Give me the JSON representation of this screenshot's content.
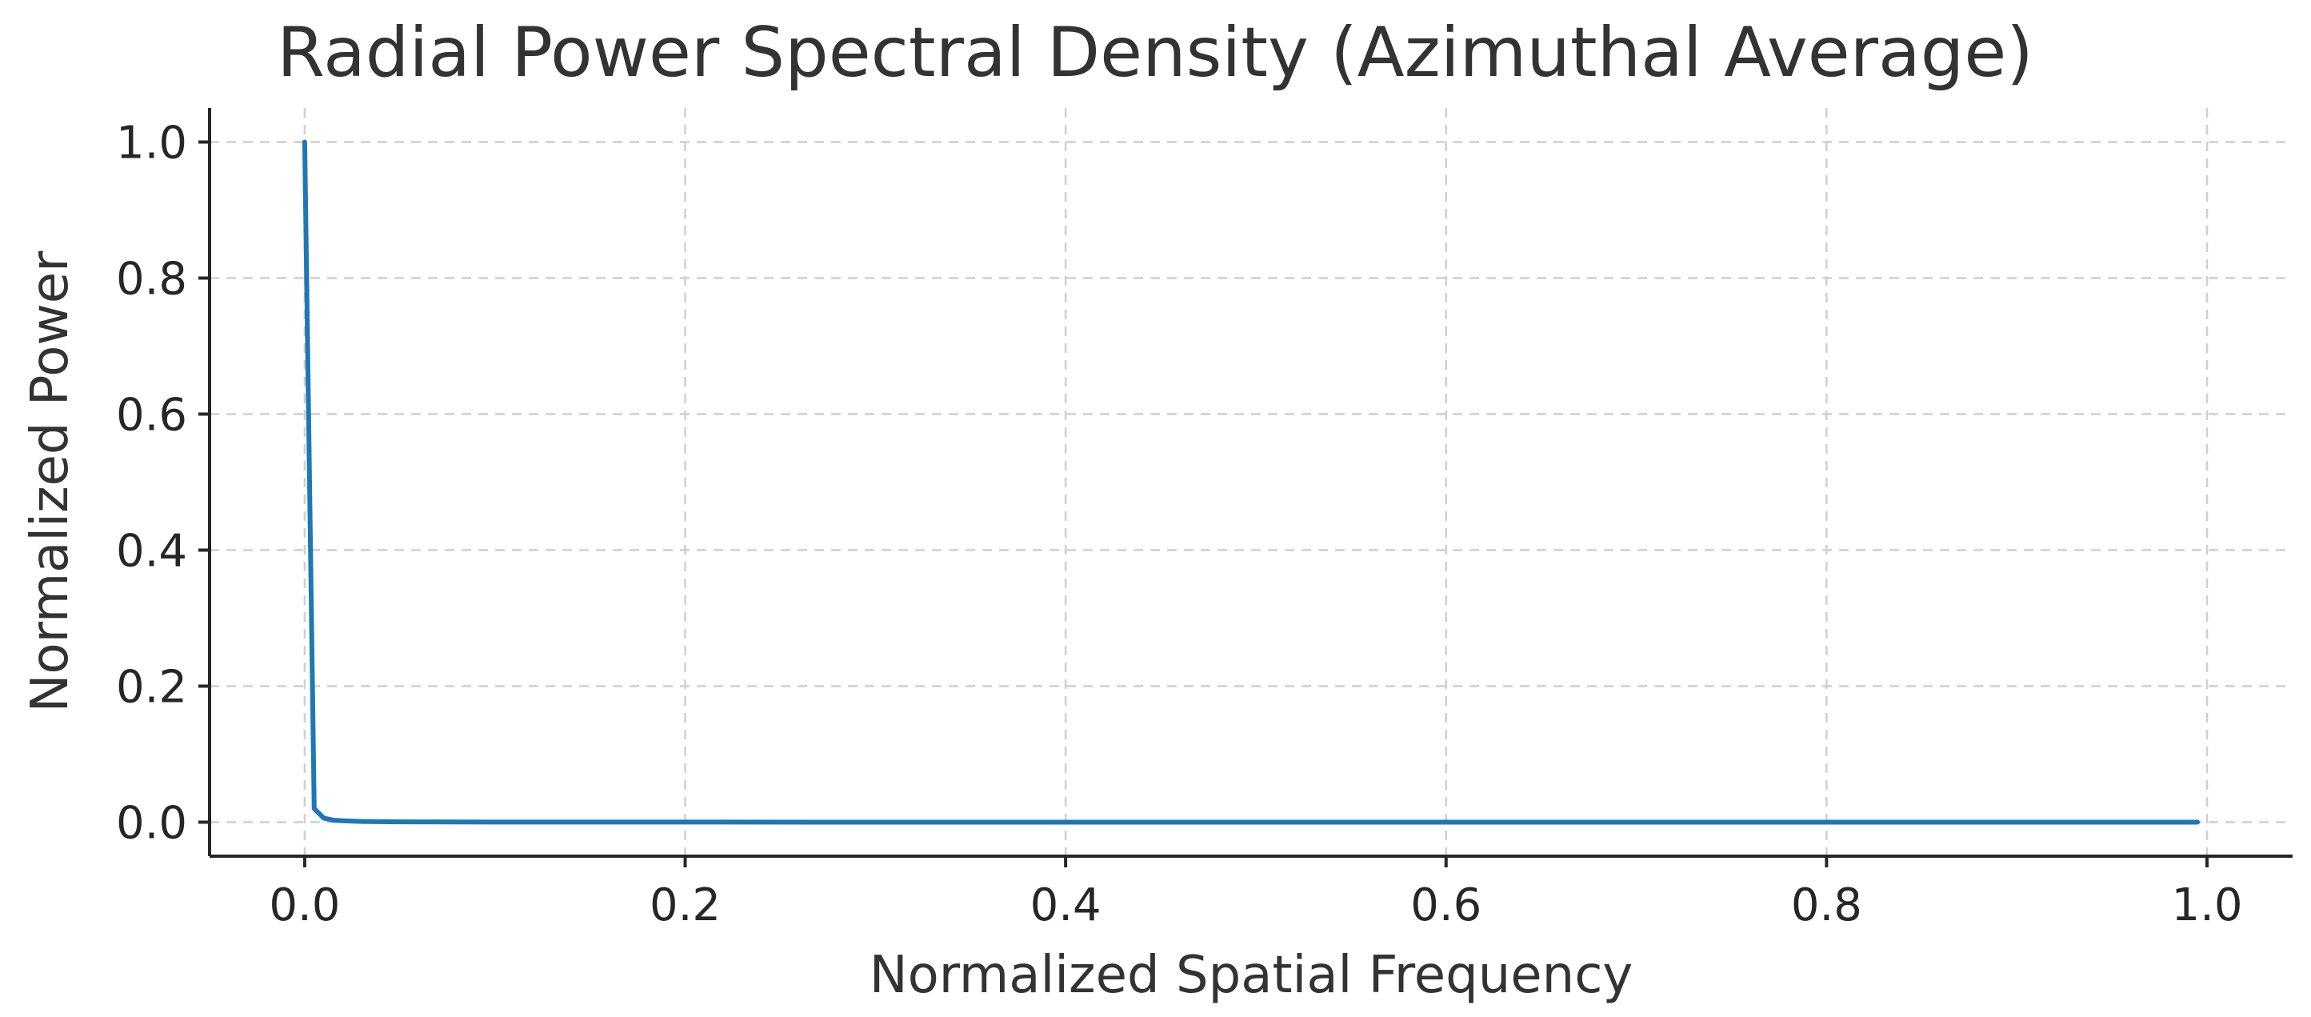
{
  "chart_data": {
    "type": "line",
    "title": "Radial Power Spectral Density (Azimuthal Average)",
    "xlabel": "Normalized Spatial Frequency",
    "ylabel": "Normalized Power",
    "xlim": [
      -0.05,
      1.045
    ],
    "ylim": [
      -0.05,
      1.05
    ],
    "xticks": [
      0.0,
      0.2,
      0.4,
      0.6,
      0.8,
      1.0
    ],
    "xtick_labels": [
      "0.0",
      "0.2",
      "0.4",
      "0.6",
      "0.8",
      "1.0"
    ],
    "yticks": [
      0.0,
      0.2,
      0.4,
      0.6,
      0.8,
      1.0
    ],
    "ytick_labels": [
      "0.0",
      "0.2",
      "0.4",
      "0.6",
      "0.8",
      "1.0"
    ],
    "grid": true,
    "legend": "none",
    "series": [
      {
        "color": "#1f77b4",
        "x": [
          0.0,
          0.005,
          0.01,
          0.015,
          0.02,
          0.03,
          0.05,
          0.1,
          0.2,
          0.4,
          0.6,
          0.8,
          0.995
        ],
        "y": [
          1.0,
          0.02,
          0.006,
          0.003,
          0.002,
          0.001,
          0.0005,
          0.0002,
          0.0001,
          0.0,
          0.0,
          0.0,
          0.0
        ]
      }
    ]
  }
}
